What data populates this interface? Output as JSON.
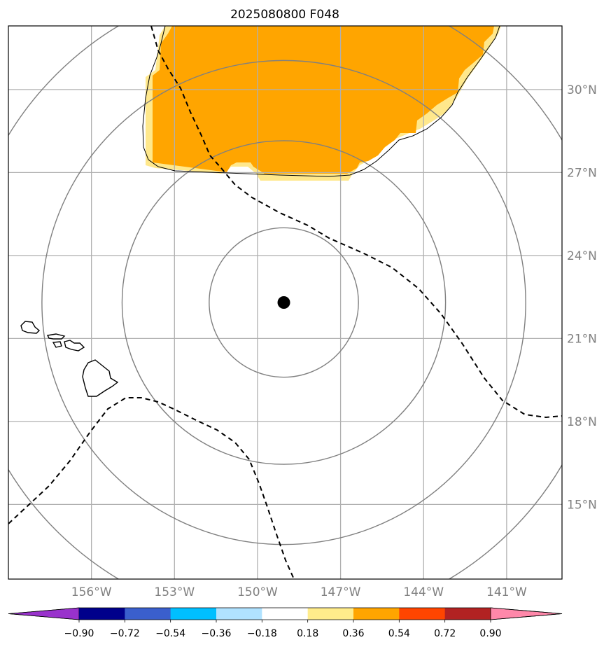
{
  "title": "2025080800 F048",
  "map": {
    "lon_range": [
      -159,
      -139
    ],
    "lat_range": [
      12.3,
      32.3
    ],
    "lon_ticks": [
      {
        "value": -156,
        "label": "156°W"
      },
      {
        "value": -153,
        "label": "153°W"
      },
      {
        "value": -150,
        "label": "150°W"
      },
      {
        "value": -147,
        "label": "147°W"
      },
      {
        "value": -144,
        "label": "144°W"
      },
      {
        "value": -141,
        "label": "141°W"
      }
    ],
    "lat_ticks": [
      {
        "value": 30,
        "label": "30°N"
      },
      {
        "value": 27,
        "label": "27°N"
      },
      {
        "value": 24,
        "label": "24°N"
      },
      {
        "value": 21,
        "label": "21°N"
      },
      {
        "value": 18,
        "label": "18°N"
      },
      {
        "value": 15,
        "label": "15°N"
      }
    ],
    "center": {
      "lon": -149.05,
      "lat": 22.3
    },
    "range_rings_deg": [
      2.7,
      5.85,
      8.75,
      11.65
    ],
    "grid": true,
    "colors": {
      "fill_main": "#ffa500",
      "fill_edge": "#ffe88c",
      "ring": "#808080",
      "grid": "#b0b0b0",
      "marker": "#000000"
    }
  },
  "colorbar": {
    "boundaries": [
      -0.9,
      -0.72,
      -0.54,
      -0.36,
      -0.18,
      0.18,
      0.36,
      0.54,
      0.72,
      0.9
    ],
    "labels": [
      "−0.90",
      "−0.72",
      "−0.54",
      "−0.36",
      "−0.18",
      "0.18",
      "0.36",
      "0.54",
      "0.72",
      "0.90"
    ],
    "colors": [
      "#9932cc",
      "#00008b",
      "#3a5fcd",
      "#00bfff",
      "#b0e2ff",
      "#ffffff",
      "#ffec8b",
      "#ffa500",
      "#ff4500",
      "#b22222",
      "#ff88aa"
    ]
  }
}
